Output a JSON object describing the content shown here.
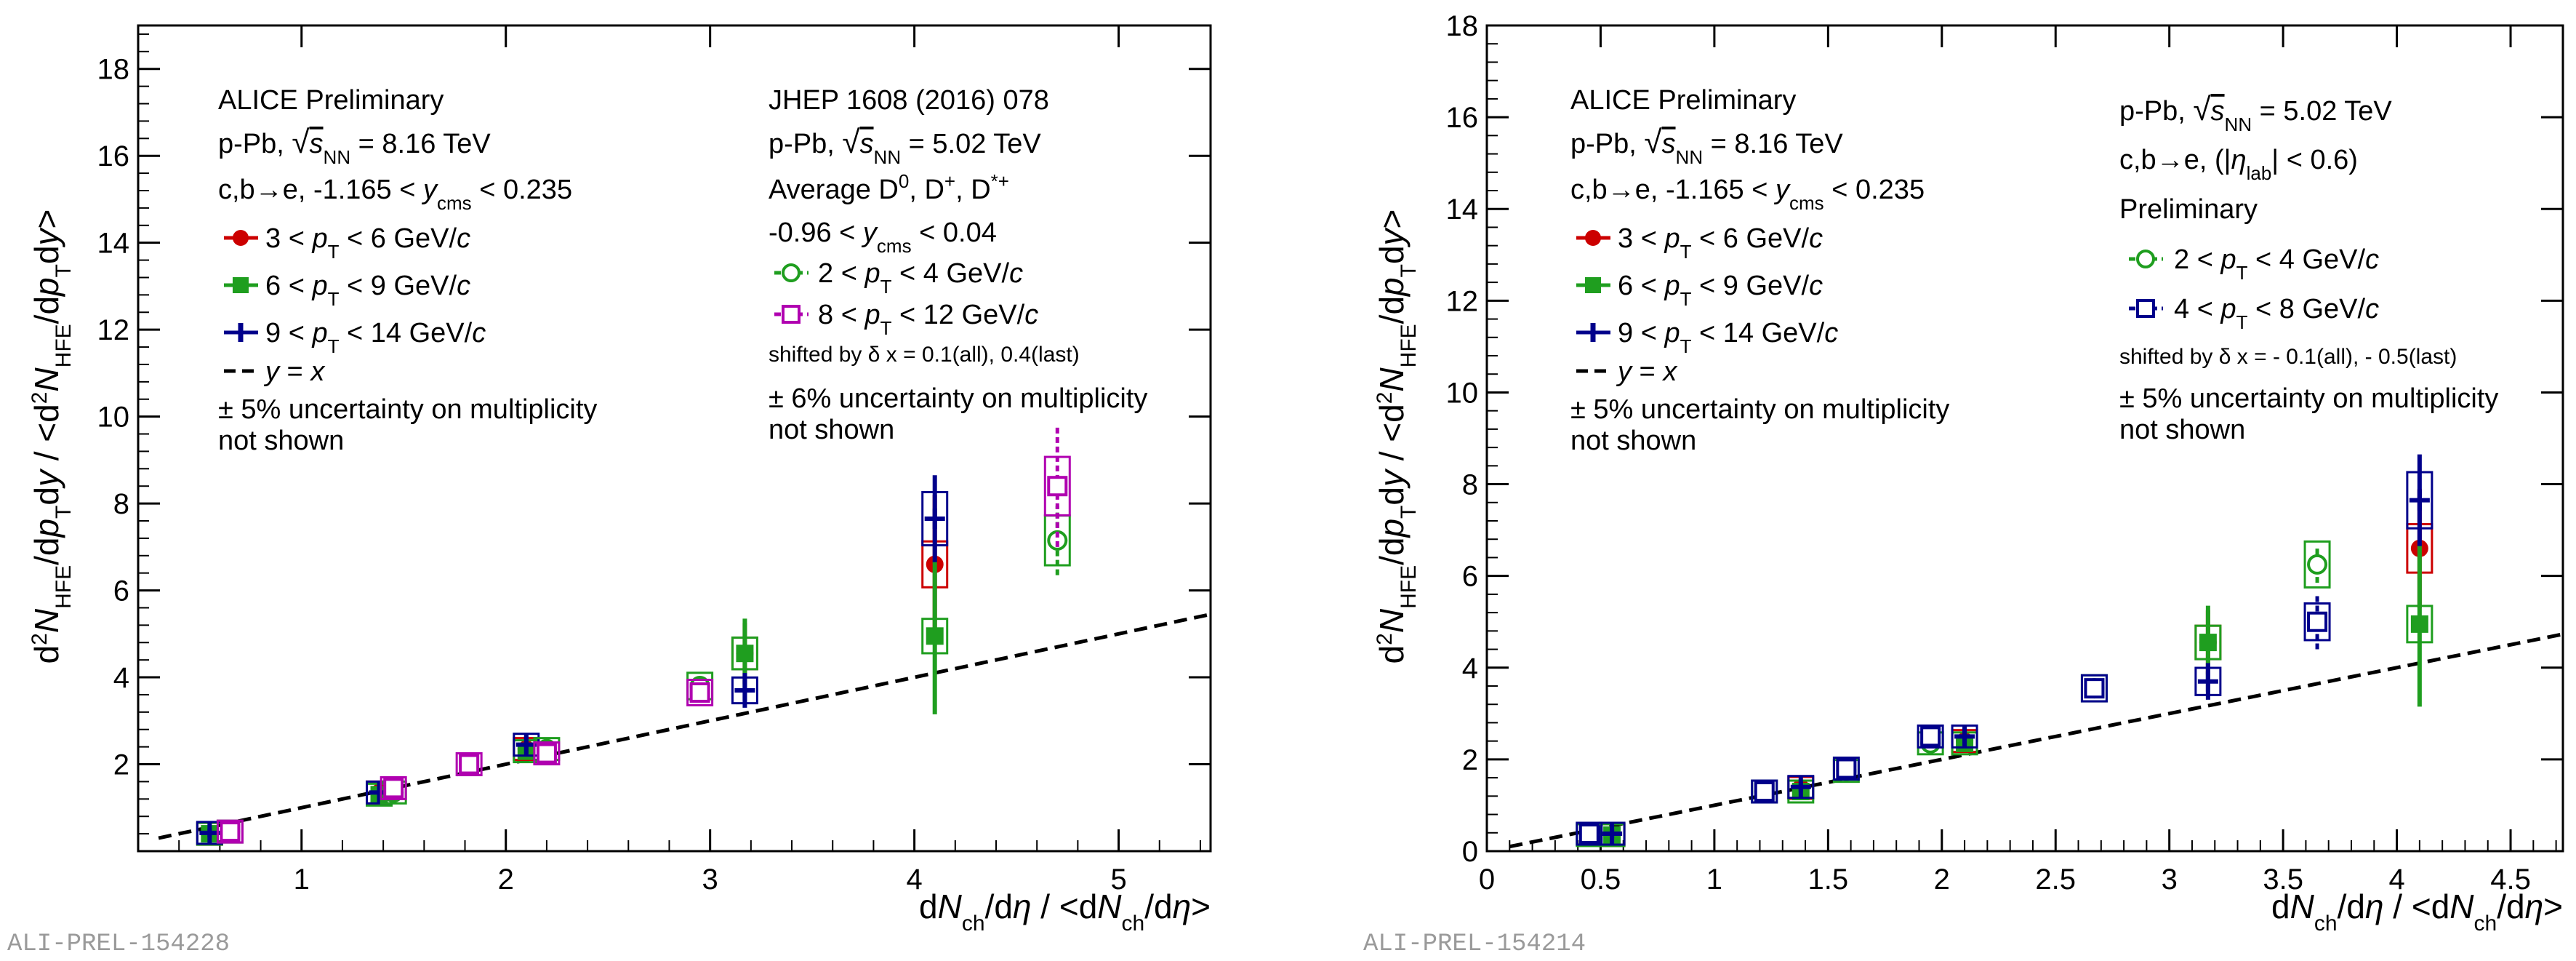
{
  "colors": {
    "red": "#cc0000",
    "green": "#1f9e1f",
    "blue": "#00008b",
    "magenta": "#b000b0"
  },
  "chart_data": [
    {
      "type": "scatter",
      "id": "left",
      "watermark": "ALI-PREL-154228",
      "xlabel": "dN_ch/dη / <dN_ch/dη>",
      "ylabel": "d²N_HFE/dp_T dy / <d²N_HFE/dp_T dy>",
      "xlim": [
        0.2,
        5.45
      ],
      "ylim": [
        0,
        19
      ],
      "xticks": [
        "1",
        "2",
        "3",
        "4",
        "5"
      ],
      "yticks": [
        "2",
        "4",
        "6",
        "8",
        "10",
        "12",
        "14",
        "16",
        "18"
      ],
      "legend_left": {
        "lines": [
          "ALICE Preliminary",
          "p-Pb, √s_NN = 8.16 TeV",
          "c,b→e, -1.165 < y_cms < 0.235"
        ],
        "entries": [
          "3 < p_T < 6 GeV/c",
          "6 < p_T < 9 GeV/c",
          "9 < p_T < 14 GeV/c",
          "y = x"
        ],
        "note": [
          "± 5% uncertainty on multiplicity",
          "not shown"
        ]
      },
      "legend_right": {
        "lines": [
          "JHEP 1608 (2016) 078",
          "p-Pb, √s_NN = 5.02 TeV",
          "Average D⁰, D⁺, D*⁺",
          "-0.96 < y_cms < 0.04"
        ],
        "entries": [
          "2 < p_T < 4 GeV/c",
          "8 < p_T < 12 GeV/c"
        ],
        "shift": "shifted by δ x = 0.1(all), 0.4(last)",
        "note": [
          "± 6% uncertainty on multiplicity",
          "not shown"
        ]
      },
      "series": [
        {
          "name": "3 < pT < 6 GeV/c",
          "color": "red",
          "marker": "circle-filled",
          "x": [
            0.55,
            1.38,
            2.1,
            3.17,
            4.1
          ],
          "y": [
            0.4,
            1.35,
            2.35,
            4.55,
            6.6
          ],
          "yerr": [
            0.1,
            0.1,
            0.15,
            0.7,
            1.6
          ]
        },
        {
          "name": "6 < pT < 9 GeV/c",
          "color": "green",
          "marker": "square-filled",
          "x": [
            0.55,
            1.38,
            2.1,
            3.17,
            4.1
          ],
          "y": [
            0.4,
            1.3,
            2.3,
            4.55,
            4.95
          ],
          "yerr": [
            0.1,
            0.1,
            0.15,
            0.8,
            1.8
          ]
        },
        {
          "name": "9 < pT < 14 GeV/c",
          "color": "blue",
          "marker": "cross",
          "x": [
            0.55,
            1.38,
            2.1,
            3.17,
            4.1
          ],
          "y": [
            0.42,
            1.35,
            2.45,
            3.7,
            7.65
          ],
          "yerr": [
            0.1,
            0.1,
            0.2,
            0.4,
            1.0
          ]
        },
        {
          "name": "D 2 < pT < 4 GeV/c",
          "color": "green",
          "marker": "circle-open",
          "x": [
            0.65,
            1.45,
            2.2,
            2.95,
            4.7
          ],
          "y": [
            0.45,
            1.35,
            2.35,
            3.8,
            7.15
          ],
          "yerr": [
            0.08,
            0.1,
            0.15,
            0.2,
            0.8
          ]
        },
        {
          "name": "D 8 < pT < 12 GeV/c",
          "color": "magenta",
          "marker": "square-open",
          "x": [
            0.65,
            1.45,
            1.82,
            2.2,
            2.95,
            4.7
          ],
          "y": [
            0.45,
            1.45,
            2.0,
            2.25,
            3.65,
            8.4
          ],
          "yerr": [
            0.08,
            0.1,
            0.12,
            0.15,
            0.2,
            1.4
          ]
        }
      ]
    },
    {
      "type": "scatter",
      "id": "right",
      "watermark": "ALI-PREL-154214",
      "xlabel": "dN_ch/dη / <dN_ch/dη>",
      "ylabel": "d²N_HFE/dp_T dy / <d²N_HFE/dp_T dy>",
      "xlim": [
        0,
        4.73
      ],
      "ylim": [
        0,
        18
      ],
      "xticks": [
        "0",
        "0.5",
        "1",
        "1.5",
        "2",
        "2.5",
        "3",
        "3.5",
        "4",
        "4.5"
      ],
      "yticks": [
        "0",
        "2",
        "4",
        "6",
        "8",
        "10",
        "12",
        "14",
        "16",
        "18"
      ],
      "legend_left": {
        "lines": [
          "ALICE Preliminary",
          "p-Pb, √s_NN = 8.16 TeV",
          "c,b→e, -1.165 < y_cms < 0.235"
        ],
        "entries": [
          "3 < p_T < 6 GeV/c",
          "6 < p_T < 9 GeV/c",
          "9 < p_T < 14 GeV/c",
          "y = x"
        ],
        "note": [
          "± 5% uncertainty on multiplicity",
          "not shown"
        ]
      },
      "legend_right": {
        "lines": [
          "p-Pb, √s_NN = 5.02 TeV",
          "c,b→e, (|η_lab| < 0.6)",
          "Preliminary"
        ],
        "entries": [
          "2 < p_T < 4 GeV/c",
          "4 < p_T < 8 GeV/c"
        ],
        "shift": "shifted by δ x = - 0.1(all), - 0.5(last)",
        "note": [
          "± 5% uncertainty on multiplicity",
          "not shown"
        ]
      },
      "series": [
        {
          "name": "3 < pT < 6 GeV/c",
          "color": "red",
          "marker": "circle-filled",
          "x": [
            0.55,
            1.38,
            2.1,
            3.17,
            4.1
          ],
          "y": [
            0.35,
            1.38,
            2.4,
            4.55,
            6.6
          ],
          "yerr": [
            0.1,
            0.1,
            0.15,
            0.7,
            1.3
          ]
        },
        {
          "name": "6 < pT < 9 GeV/c",
          "color": "green",
          "marker": "square-filled",
          "x": [
            0.55,
            1.38,
            2.1,
            3.17,
            4.1
          ],
          "y": [
            0.35,
            1.3,
            2.35,
            4.55,
            4.95
          ],
          "yerr": [
            0.1,
            0.1,
            0.15,
            0.8,
            1.8
          ]
        },
        {
          "name": "9 < pT < 14 GeV/c",
          "color": "blue",
          "marker": "cross",
          "x": [
            0.55,
            1.38,
            2.1,
            3.17,
            4.1
          ],
          "y": [
            0.38,
            1.4,
            2.5,
            3.7,
            7.65
          ],
          "yerr": [
            0.1,
            0.1,
            0.2,
            0.4,
            1.0
          ]
        },
        {
          "name": "2 < pT < 4 GeV/c",
          "color": "green",
          "marker": "circle-open",
          "x": [
            0.45,
            1.22,
            1.58,
            1.95,
            2.67,
            3.65
          ],
          "y": [
            0.35,
            1.3,
            1.75,
            2.35,
            3.55,
            6.25
          ],
          "yerr": [
            0.08,
            0.08,
            0.1,
            0.12,
            0.15,
            0.4
          ]
        },
        {
          "name": "4 < pT < 8 GeV/c",
          "color": "blue",
          "marker": "square-open",
          "x": [
            0.45,
            1.22,
            1.58,
            1.95,
            2.67,
            3.65
          ],
          "y": [
            0.38,
            1.3,
            1.8,
            2.5,
            3.55,
            5.0
          ],
          "yerr": [
            0.08,
            0.08,
            0.1,
            0.12,
            0.15,
            0.6
          ]
        }
      ]
    }
  ]
}
